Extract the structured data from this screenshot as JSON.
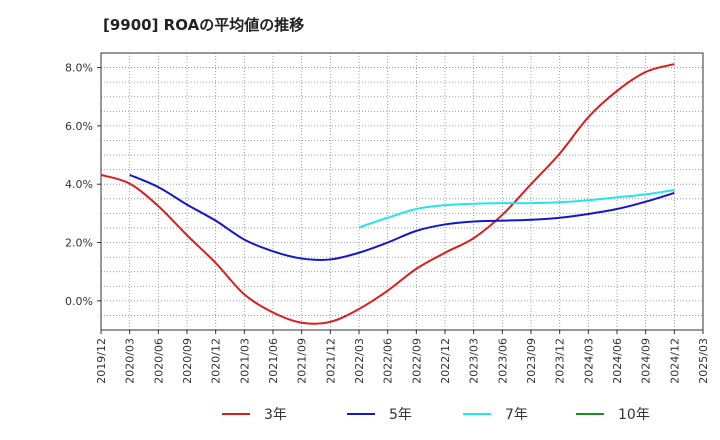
{
  "chart_data": {
    "type": "line",
    "title": "[9900]  ROAの平均値の推移",
    "xlabel": "",
    "ylabel": "",
    "ylim": [
      -1.0,
      8.5
    ],
    "y_ticks": [
      "8.0%",
      "6.0%",
      "4.0%",
      "2.0%",
      "0.0%"
    ],
    "y_tick_values": [
      8,
      6,
      4,
      2,
      0
    ],
    "x_ticks": [
      "2019/12",
      "2020/03",
      "2020/06",
      "2020/09",
      "2020/12",
      "2021/03",
      "2021/06",
      "2021/09",
      "2021/12",
      "2022/03",
      "2022/06",
      "2022/09",
      "2022/12",
      "2023/03",
      "2023/06",
      "2023/09",
      "2023/12",
      "2024/03",
      "2024/06",
      "2024/09",
      "2024/12",
      "2025/03"
    ],
    "grid": true,
    "legend_position": "bottom",
    "series": [
      {
        "name": "3年",
        "color": "#dd1c1c",
        "values": [
          4.32,
          4.02,
          3.25,
          2.25,
          1.3,
          0.22,
          -0.4,
          -0.75,
          -0.72,
          -0.28,
          0.35,
          1.1,
          1.65,
          2.15,
          2.95,
          4.0,
          5.05,
          6.3,
          7.2,
          7.85,
          8.12,
          null
        ]
      },
      {
        "name": "5年",
        "color": "#1616c8",
        "values": [
          null,
          4.32,
          3.9,
          3.3,
          2.75,
          2.1,
          1.7,
          1.45,
          1.42,
          1.65,
          2.0,
          2.4,
          2.62,
          2.72,
          2.75,
          2.78,
          2.85,
          2.98,
          3.15,
          3.4,
          3.7,
          null
        ]
      },
      {
        "name": "7年",
        "color": "#22e5ee",
        "values": [
          null,
          null,
          null,
          null,
          null,
          null,
          null,
          null,
          null,
          2.52,
          2.85,
          3.15,
          3.28,
          3.33,
          3.35,
          3.35,
          3.38,
          3.45,
          3.55,
          3.65,
          3.8,
          null
        ]
      },
      {
        "name": "10年",
        "color": "#1e8c1e",
        "values": [
          null,
          null,
          null,
          null,
          null,
          null,
          null,
          null,
          null,
          null,
          null,
          null,
          null,
          null,
          null,
          null,
          null,
          null,
          null,
          null,
          null,
          null
        ]
      }
    ]
  }
}
